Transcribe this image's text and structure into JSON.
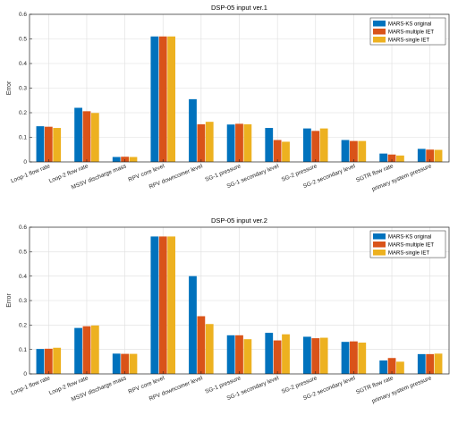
{
  "chart_data": [
    {
      "type": "bar",
      "title": "DSP-05 input ver.1",
      "xlabel": "",
      "ylabel": "Error",
      "ylim": [
        0,
        0.6
      ],
      "yticks": [
        "0",
        "0.1",
        "0.2",
        "0.3",
        "0.4",
        "0.5",
        "0.6"
      ],
      "grid": true,
      "legend_position": "top-right",
      "categories": [
        "Loop-1 flow rate",
        "Loop-2 flow rate",
        "MSSV discharge mass",
        "RPV core level",
        "RPV downcomer level",
        "SG-1 pressure",
        "SG-1 secondary level",
        "SG-2 pressure",
        "SG-2 secondary level",
        "SGTR flow rate",
        "primary system pressure"
      ],
      "series": [
        {
          "name": "MARS-KS original",
          "color": "#0072BD",
          "values": [
            0.145,
            0.22,
            0.02,
            0.51,
            0.255,
            0.152,
            0.138,
            0.136,
            0.089,
            0.034,
            0.053
          ]
        },
        {
          "name": "MARS-multiple IET",
          "color": "#D95319",
          "values": [
            0.143,
            0.206,
            0.021,
            0.51,
            0.153,
            0.155,
            0.089,
            0.126,
            0.085,
            0.03,
            0.05
          ]
        },
        {
          "name": "MARS-single IET",
          "color": "#EDB120",
          "values": [
            0.138,
            0.199,
            0.02,
            0.51,
            0.163,
            0.153,
            0.082,
            0.136,
            0.085,
            0.026,
            0.049
          ]
        }
      ]
    },
    {
      "type": "bar",
      "title": "DSP-05 input ver.2",
      "xlabel": "",
      "ylabel": "Error",
      "ylim": [
        0,
        0.6
      ],
      "yticks": [
        "0",
        "0.1",
        "0.2",
        "0.3",
        "0.4",
        "0.5",
        "0.6"
      ],
      "grid": true,
      "legend_position": "top-right",
      "categories": [
        "Loop-1 flow rate",
        "Loop-2 flow rate",
        "MSSV discharge mass",
        "RPV core level",
        "RPV downcomer level",
        "SG-1 pressure",
        "SG-1 secondary level",
        "SG-2 pressure",
        "SG-2 secondary level",
        "SGTR flow rate",
        "primary system pressure"
      ],
      "series": [
        {
          "name": "MARS-KS original",
          "color": "#0072BD",
          "values": [
            0.102,
            0.188,
            0.083,
            0.562,
            0.4,
            0.158,
            0.168,
            0.152,
            0.131,
            0.055,
            0.081
          ]
        },
        {
          "name": "MARS-multiple IET",
          "color": "#D95319",
          "values": [
            0.103,
            0.195,
            0.082,
            0.562,
            0.236,
            0.158,
            0.137,
            0.146,
            0.133,
            0.065,
            0.081
          ]
        },
        {
          "name": "MARS-single IET",
          "color": "#EDB120",
          "values": [
            0.107,
            0.198,
            0.082,
            0.562,
            0.204,
            0.142,
            0.162,
            0.148,
            0.128,
            0.05,
            0.083
          ]
        }
      ]
    }
  ]
}
